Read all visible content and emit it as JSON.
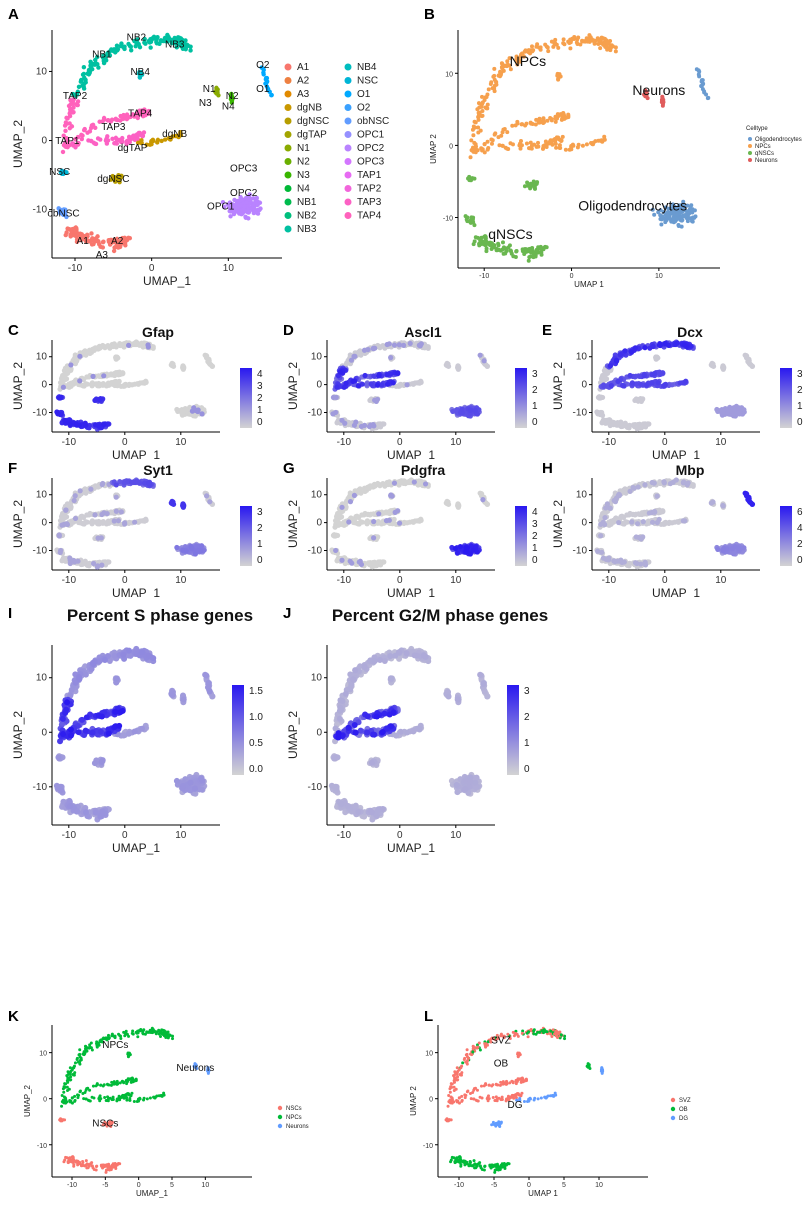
{
  "panels": [
    {
      "label": "A",
      "title": "",
      "xlabel": "UMAP_1",
      "ylabel": "UMAP_2",
      "xticks": [
        -10,
        0,
        10
      ],
      "yticks": [
        10,
        0,
        -10
      ],
      "legend": [
        "A1",
        "A2",
        "A3",
        "dgNB",
        "dgNSC",
        "dgTAP",
        "N1",
        "N2",
        "N3",
        "N4",
        "NB1",
        "NB2",
        "NB3",
        "NB4",
        "NSC",
        "O1",
        "O2",
        "obNSC",
        "OPC1",
        "OPC2",
        "OPC3",
        "TAP1",
        "TAP2",
        "TAP3",
        "TAP4"
      ],
      "legend_colors": [
        "#f8766d",
        "#ee8042",
        "#e18a00",
        "#c99800",
        "#b69d00",
        "#a3a500",
        "#8aab00",
        "#6aaf00",
        "#39b600",
        "#00b937",
        "#00bb4e",
        "#00bf7d",
        "#00c0a1",
        "#00bdbf",
        "#00b5d6",
        "#00a9ff",
        "#3aa1ff",
        "#619cff",
        "#9590ff",
        "#b983ff",
        "#d376ff",
        "#e76bf3",
        "#f265db",
        "#fc61c4",
        "#ff62bc"
      ]
    },
    {
      "label": "B",
      "title": "",
      "xlabel": "UMAP 1",
      "ylabel": "UMAP 2",
      "xticks": [
        -10,
        0,
        10
      ],
      "yticks": [
        10,
        0,
        -10
      ],
      "legend_title": "Celltype",
      "legend": [
        "Oligodendrocytes",
        "NPCs",
        "qNSCs",
        "Neurons"
      ],
      "legend_colors": [
        "#6a9bd0",
        "#f6a04d",
        "#6ab750",
        "#e05c5c"
      ]
    },
    {
      "label": "C",
      "title": "Gfap",
      "xlabel": "UMAP_1",
      "ylabel": "UMAP_2",
      "xticks": [
        -10,
        0,
        10
      ],
      "yticks": [
        10,
        0,
        -10
      ],
      "cbar": [
        "4",
        "3",
        "2",
        "1",
        "0"
      ]
    },
    {
      "label": "D",
      "title": "Ascl1",
      "xlabel": "UMAP_1",
      "ylabel": "UMAP_2",
      "xticks": [
        -10,
        0,
        10
      ],
      "yticks": [
        10,
        0,
        -10
      ],
      "cbar": [
        "3",
        "2",
        "1",
        "0"
      ]
    },
    {
      "label": "E",
      "title": "Dcx",
      "xlabel": "UMAP_1",
      "ylabel": "UMAP_2",
      "xticks": [
        -10,
        0,
        10
      ],
      "yticks": [
        10,
        0,
        -10
      ],
      "cbar": [
        "3",
        "2",
        "1",
        "0"
      ]
    },
    {
      "label": "F",
      "title": "Syt1",
      "xlabel": "UMAP_1",
      "ylabel": "UMAP_2",
      "xticks": [
        -10,
        0,
        10
      ],
      "yticks": [
        10,
        0,
        -10
      ],
      "cbar": [
        "3",
        "2",
        "1",
        "0"
      ]
    },
    {
      "label": "G",
      "title": "Pdgfra",
      "xlabel": "UMAP_1",
      "ylabel": "UMAP_2",
      "xticks": [
        -10,
        0,
        10
      ],
      "yticks": [
        10,
        0,
        -10
      ],
      "cbar": [
        "4",
        "3",
        "2",
        "1",
        "0"
      ]
    },
    {
      "label": "H",
      "title": "Mbp",
      "xlabel": "UMAP_1",
      "ylabel": "UMAP_2",
      "xticks": [
        -10,
        0,
        10
      ],
      "yticks": [
        10,
        0,
        -10
      ],
      "cbar": [
        "6",
        "4",
        "2",
        "0"
      ]
    },
    {
      "label": "I",
      "title": "Percent S phase genes",
      "xlabel": "UMAP_1",
      "ylabel": "UMAP_2",
      "xticks": [
        -10,
        0,
        10
      ],
      "yticks": [
        10,
        0,
        -10
      ],
      "cbar": [
        "1.5",
        "1.0",
        "0.5",
        "0.0"
      ]
    },
    {
      "label": "J",
      "title": "Percent G2/M phase genes",
      "xlabel": "UMAP_1",
      "ylabel": "UMAP_2",
      "xticks": [
        -10,
        0,
        10
      ],
      "yticks": [
        10,
        0,
        -10
      ],
      "cbar": [
        "3",
        "2",
        "1",
        "0"
      ]
    },
    {
      "label": "K",
      "title": "",
      "xlabel": "UMAP_1",
      "ylabel": "UMAP_2",
      "xticks": [
        -10,
        -5,
        0,
        5,
        10
      ],
      "yticks": [
        10,
        0,
        -10
      ],
      "legend": [
        "NSCs",
        "NPCs",
        "Neurons"
      ],
      "legend_colors": [
        "#f8766d",
        "#00ba38",
        "#619cff"
      ]
    },
    {
      "label": "L",
      "title": "",
      "xlabel": "UMAP 1",
      "ylabel": "UMAP 2",
      "xticks": [
        -10,
        -5,
        0,
        5,
        10
      ],
      "yticks": [
        10,
        0,
        -10
      ],
      "legend": [
        "SVZ",
        "OB",
        "DG"
      ],
      "legend_colors": [
        "#f8766d",
        "#00ba38",
        "#619cff"
      ]
    }
  ],
  "chart_data": [
    {
      "type": "scatter",
      "panel": "A",
      "cluster_labels": [
        {
          "text": "NB2",
          "x": -2,
          "y": 14.5
        },
        {
          "text": "NB3",
          "x": 3,
          "y": 13.5
        },
        {
          "text": "NB1",
          "x": -6.5,
          "y": 12
        },
        {
          "text": "NB4",
          "x": -1.5,
          "y": 9.5
        },
        {
          "text": "TAP2",
          "x": -10,
          "y": 6
        },
        {
          "text": "TAP4",
          "x": -1.5,
          "y": 3.5
        },
        {
          "text": "TAP3",
          "x": -5,
          "y": 1.5
        },
        {
          "text": "TAP1",
          "x": -11,
          "y": -0.5
        },
        {
          "text": "dgTAP",
          "x": -2.5,
          "y": -1.5
        },
        {
          "text": "dgNB",
          "x": 3,
          "y": 0.5
        },
        {
          "text": "N1",
          "x": 7.5,
          "y": 7
        },
        {
          "text": "N3",
          "x": 7,
          "y": 5
        },
        {
          "text": "N2",
          "x": 10.5,
          "y": 6
        },
        {
          "text": "N4",
          "x": 10,
          "y": 4.5
        },
        {
          "text": "O2",
          "x": 14.5,
          "y": 10.5
        },
        {
          "text": "O1",
          "x": 14.5,
          "y": 7
        },
        {
          "text": "NSC",
          "x": -12,
          "y": -5
        },
        {
          "text": "dgNSC",
          "x": -5,
          "y": -6
        },
        {
          "text": "OPC3",
          "x": 12,
          "y": -4.5
        },
        {
          "text": "OPC2",
          "x": 12,
          "y": -8
        },
        {
          "text": "OPC1",
          "x": 9,
          "y": -10
        },
        {
          "text": "obNSC",
          "x": -11.5,
          "y": -11
        },
        {
          "text": "A1",
          "x": -9,
          "y": -15
        },
        {
          "text": "A2",
          "x": -4.5,
          "y": -15
        },
        {
          "text": "A3",
          "x": -6.5,
          "y": -17
        }
      ]
    },
    {
      "type": "scatter",
      "panel": "B",
      "cluster_labels": [
        {
          "text": "NPCs",
          "x": -5,
          "y": 11
        },
        {
          "text": "Neurons",
          "x": 10,
          "y": 7
        },
        {
          "text": "Oligodendrocytes",
          "x": 7,
          "y": -9
        },
        {
          "text": "qNSCs",
          "x": -7,
          "y": -13
        }
      ]
    },
    {
      "type": "scatter",
      "panel": "C",
      "colorbar_range": [
        0,
        4.3
      ]
    },
    {
      "type": "scatter",
      "panel": "D",
      "colorbar_range": [
        0,
        3.5
      ]
    },
    {
      "type": "scatter",
      "panel": "E",
      "colorbar_range": [
        0,
        3.5
      ]
    },
    {
      "type": "scatter",
      "panel": "F",
      "colorbar_range": [
        0,
        3.5
      ]
    },
    {
      "type": "scatter",
      "panel": "G",
      "colorbar_range": [
        0,
        4.3
      ]
    },
    {
      "type": "scatter",
      "panel": "H",
      "colorbar_range": [
        0,
        6.5
      ]
    },
    {
      "type": "scatter",
      "panel": "I",
      "colorbar_range": [
        0,
        1.8
      ]
    },
    {
      "type": "scatter",
      "panel": "J",
      "colorbar_range": [
        0,
        3.5
      ]
    },
    {
      "type": "scatter",
      "panel": "K",
      "cluster_labels": [
        {
          "text": "NPCs",
          "x": -3.5,
          "y": 11
        },
        {
          "text": "Neurons",
          "x": 8.5,
          "y": 6
        },
        {
          "text": "NSCs",
          "x": -5,
          "y": -6
        }
      ]
    },
    {
      "type": "scatter",
      "panel": "L",
      "cluster_labels": [
        {
          "text": "SVZ",
          "x": -4,
          "y": 12
        },
        {
          "text": "OB",
          "x": -4,
          "y": 7
        },
        {
          "text": "DG",
          "x": -2,
          "y": -2
        }
      ]
    }
  ]
}
